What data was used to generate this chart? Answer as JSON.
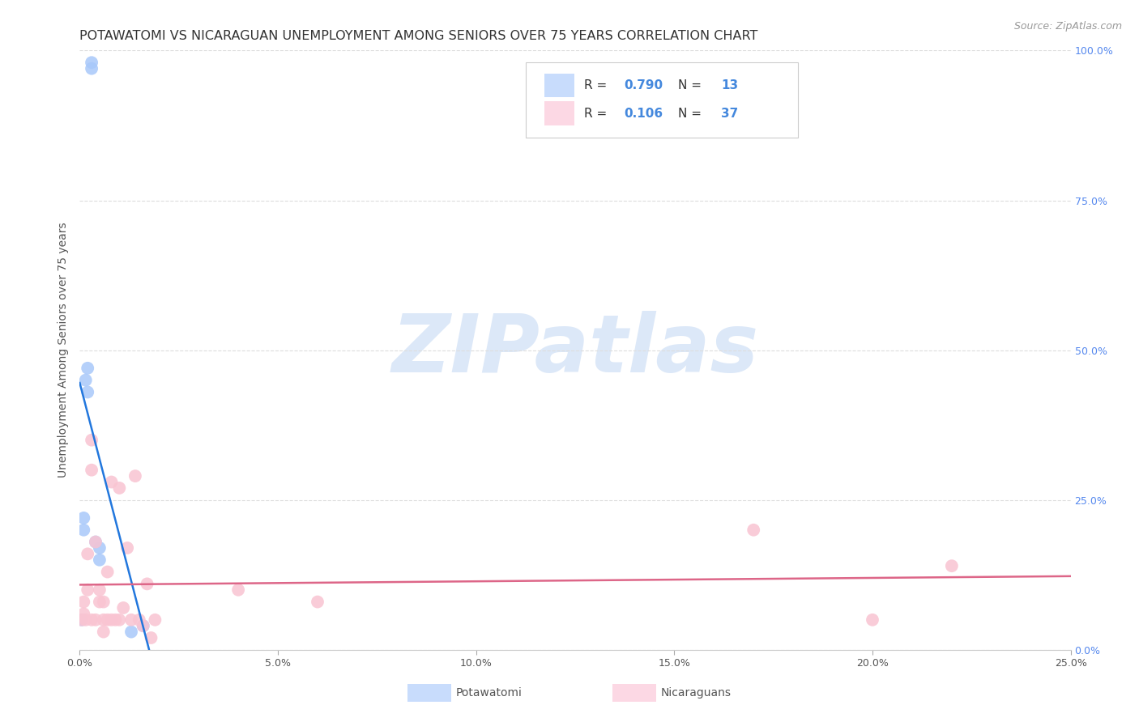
{
  "title": "POTAWATOMI VS NICARAGUAN UNEMPLOYMENT AMONG SENIORS OVER 75 YEARS CORRELATION CHART",
  "source": "Source: ZipAtlas.com",
  "ylabel": "Unemployment Among Seniors over 75 years",
  "xlim": [
    0.0,
    0.25
  ],
  "ylim": [
    0.0,
    1.0
  ],
  "xticks": [
    0.0,
    0.05,
    0.1,
    0.15,
    0.2,
    0.25
  ],
  "yticks": [
    0.0,
    0.25,
    0.5,
    0.75,
    1.0
  ],
  "xtick_labels": [
    "0.0%",
    "5.0%",
    "10.0%",
    "15.0%",
    "20.0%",
    "25.0%"
  ],
  "ytick_labels_right": [
    "0.0%",
    "25.0%",
    "50.0%",
    "75.0%",
    "100.0%"
  ],
  "potawatomi_x": [
    0.0005,
    0.001,
    0.001,
    0.0015,
    0.002,
    0.002,
    0.003,
    0.003,
    0.004,
    0.005,
    0.005,
    0.013,
    0.016
  ],
  "potawatomi_y": [
    0.05,
    0.2,
    0.22,
    0.45,
    0.43,
    0.47,
    0.98,
    0.97,
    0.18,
    0.17,
    0.15,
    0.03,
    0.04
  ],
  "nicaraguan_x": [
    0.0005,
    0.001,
    0.001,
    0.0015,
    0.002,
    0.002,
    0.003,
    0.003,
    0.003,
    0.004,
    0.004,
    0.005,
    0.005,
    0.006,
    0.006,
    0.006,
    0.007,
    0.007,
    0.008,
    0.008,
    0.009,
    0.01,
    0.01,
    0.011,
    0.012,
    0.013,
    0.014,
    0.015,
    0.016,
    0.017,
    0.018,
    0.019,
    0.04,
    0.06,
    0.17,
    0.2,
    0.22
  ],
  "nicaraguan_y": [
    0.05,
    0.06,
    0.08,
    0.05,
    0.1,
    0.16,
    0.35,
    0.3,
    0.05,
    0.18,
    0.05,
    0.1,
    0.08,
    0.05,
    0.03,
    0.08,
    0.13,
    0.05,
    0.28,
    0.05,
    0.05,
    0.27,
    0.05,
    0.07,
    0.17,
    0.05,
    0.29,
    0.05,
    0.04,
    0.11,
    0.02,
    0.05,
    0.1,
    0.08,
    0.2,
    0.05,
    0.14
  ],
  "R_potawatomi": 0.79,
  "N_potawatomi": 13,
  "R_nicaraguan": 0.106,
  "N_nicaraguan": 37,
  "color_potawatomi": "#a8c8fa",
  "color_nicaraguan": "#f9c4d2",
  "line_color_potawatomi": "#2277dd",
  "line_color_nicaraguan": "#dd6688",
  "legend_face_potawatomi": "#c8dcfc",
  "legend_face_nicaraguan": "#fcd8e4",
  "watermark_text": "ZIPatlas",
  "watermark_color": "#dce8f8",
  "watermark_fontsize": 72,
  "grid_color": "#dddddd",
  "title_fontsize": 11.5,
  "axis_label_fontsize": 10,
  "tick_fontsize": 9,
  "source_fontsize": 9
}
